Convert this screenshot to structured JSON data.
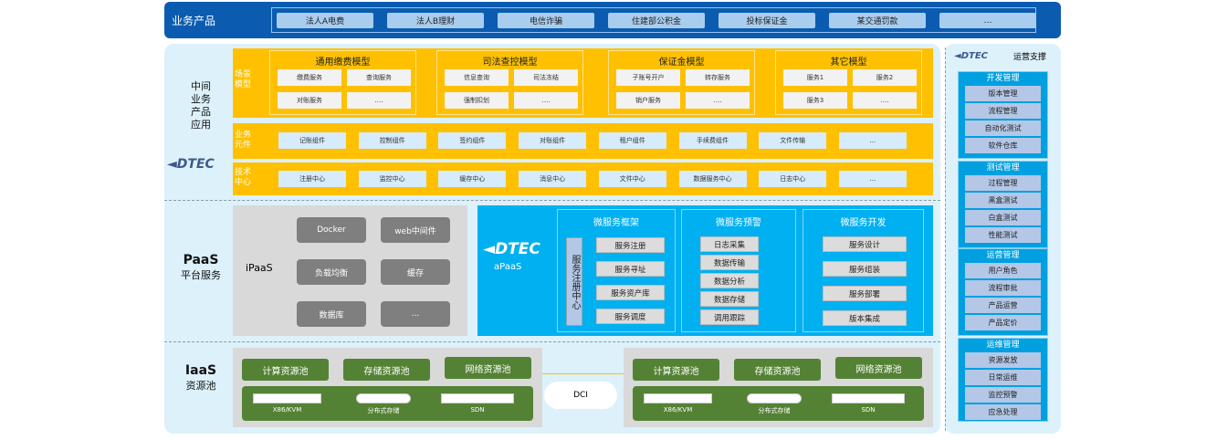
{
  "top": {
    "label": "业务产品",
    "items": [
      "法人A电费",
      "法人B理财",
      "电信诈骗",
      "住建部公积金",
      "投标保证金",
      "某交通罚款",
      "…"
    ]
  },
  "middle": {
    "label": "中间\n业务\n产品\n应用",
    "logo": "DTEC",
    "scene": {
      "label": "场景模型",
      "groups": [
        {
          "title": "通用缴费模型",
          "items": [
            "缴费服务",
            "查询服务",
            "对账服务",
            "…."
          ]
        },
        {
          "title": "司法查控模型",
          "items": [
            "信息查询",
            "司法冻结",
            "强制扣划",
            "…."
          ]
        },
        {
          "title": "保证金模型",
          "items": [
            "子账号开户",
            "转存服务",
            "销户服务",
            "…."
          ]
        },
        {
          "title": "其它模型",
          "items": [
            "服务1",
            "服务2",
            "服务3",
            "…."
          ]
        }
      ]
    },
    "components": {
      "label": "业务元件",
      "items": [
        "记账组件",
        "控制组件",
        "签约组件",
        "对账组件",
        "租户组件",
        "手续费组件",
        "文件传输",
        "..."
      ]
    },
    "tech": {
      "label": "技术中心",
      "items": [
        "注册中心",
        "监控中心",
        "缓存中心",
        "消息中心",
        "文件中心",
        "数据服务中心",
        "日志中心",
        "..."
      ]
    }
  },
  "paas": {
    "title": "PaaS",
    "subtitle": "平台服务",
    "ipaas": {
      "label": "iPaaS",
      "items": [
        "Docker",
        "web中间件",
        "负载均衡",
        "缓存",
        "数据库",
        "..."
      ]
    },
    "apaas": {
      "logo": "DTEC",
      "label": "aPaaS",
      "framework": {
        "title": "微服务框架",
        "registry": "服务注册中心",
        "items": [
          "服务注册",
          "服务寻址",
          "服务资产库",
          "服务调度"
        ]
      },
      "alert": {
        "title": "微服务预警",
        "items": [
          "日志采集",
          "数据传输",
          "数据分析",
          "数据存储",
          "调用跟踪"
        ]
      },
      "dev": {
        "title": "微服务开发",
        "items": [
          "服务设计",
          "服务组装",
          "服务部署",
          "版本集成"
        ]
      }
    }
  },
  "iaas": {
    "title": "IaaS",
    "subtitle": "资源池",
    "pools": [
      "计算资源池",
      "存储资源池",
      "网络资源池"
    ],
    "hardware": [
      "X86/KVM",
      "分布式存储",
      "SDN"
    ],
    "link": "DCI"
  },
  "ops": {
    "logo": "DTEC",
    "title": "运营支撑",
    "groups": [
      {
        "title": "开发管理",
        "items": [
          "版本管理",
          "流程管理",
          "自动化测试",
          "软件仓库"
        ]
      },
      {
        "title": "测试管理",
        "items": [
          "过程管理",
          "黑盒测试",
          "白盒测试",
          "性能测试"
        ]
      },
      {
        "title": "运营管理",
        "items": [
          "用户角色",
          "流程审批",
          "产品运营",
          "产品定价"
        ]
      },
      {
        "title": "运维管理",
        "items": [
          "资源发放",
          "日常运维",
          "监控预警",
          "应急处理"
        ]
      }
    ]
  },
  "colors": {
    "topbar": "#0b5cb0",
    "yellow": "#fec000",
    "apaas": "#00b0f0",
    "green": "#548235",
    "ops": "#00a0e0"
  }
}
